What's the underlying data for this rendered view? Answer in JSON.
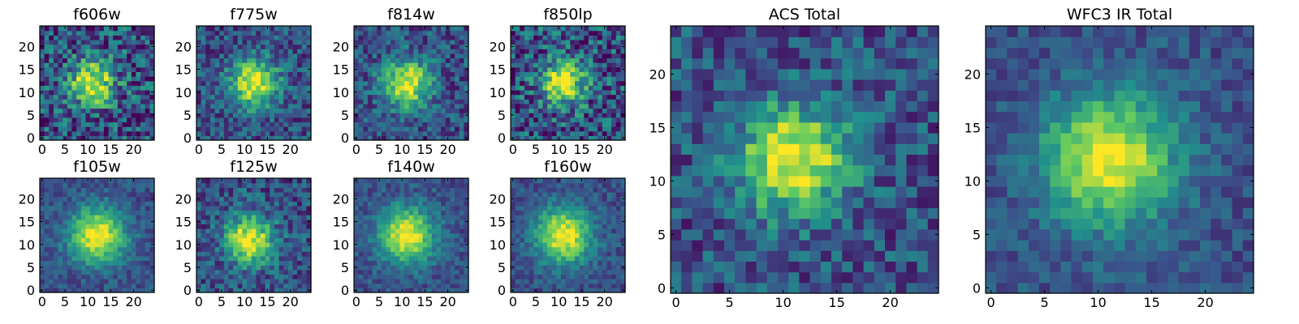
{
  "chart_data": [
    {
      "type": "heatmap",
      "title": "f606w",
      "xlim": [
        0,
        24
      ],
      "ylim": [
        0,
        24
      ],
      "xticks": [
        0,
        5,
        10,
        15,
        20
      ],
      "yticks": [
        0,
        5,
        10,
        15,
        20
      ],
      "colormap": "viridis",
      "center": [
        11,
        12
      ],
      "noise": "high"
    },
    {
      "type": "heatmap",
      "title": "f775w",
      "xlim": [
        0,
        24
      ],
      "ylim": [
        0,
        24
      ],
      "xticks": [
        0,
        5,
        10,
        15,
        20
      ],
      "yticks": [
        0,
        5,
        10,
        15,
        20
      ],
      "colormap": "viridis",
      "center": [
        12,
        12
      ],
      "noise": "medium"
    },
    {
      "type": "heatmap",
      "title": "f814w",
      "xlim": [
        0,
        24
      ],
      "ylim": [
        0,
        24
      ],
      "xticks": [
        0,
        5,
        10,
        15,
        20
      ],
      "yticks": [
        0,
        5,
        10,
        15,
        20
      ],
      "colormap": "viridis",
      "center": [
        11,
        12
      ],
      "noise": "medium"
    },
    {
      "type": "heatmap",
      "title": "f850lp",
      "xlim": [
        0,
        24
      ],
      "ylim": [
        0,
        24
      ],
      "xticks": [
        0,
        5,
        10,
        15,
        20
      ],
      "yticks": [
        0,
        5,
        10,
        15,
        20
      ],
      "colormap": "viridis",
      "center": [
        11,
        12
      ],
      "noise": "high"
    },
    {
      "type": "heatmap",
      "title": "f105w",
      "xlim": [
        0,
        24
      ],
      "ylim": [
        0,
        24
      ],
      "xticks": [
        0,
        5,
        10,
        15,
        20
      ],
      "yticks": [
        0,
        5,
        10,
        15,
        20
      ],
      "colormap": "viridis",
      "center": [
        12,
        12
      ],
      "noise": "low"
    },
    {
      "type": "heatmap",
      "title": "f125w",
      "xlim": [
        0,
        24
      ],
      "ylim": [
        0,
        24
      ],
      "xticks": [
        0,
        5,
        10,
        15,
        20
      ],
      "yticks": [
        0,
        5,
        10,
        15,
        20
      ],
      "colormap": "viridis",
      "center": [
        11,
        11
      ],
      "noise": "medium"
    },
    {
      "type": "heatmap",
      "title": "f140w",
      "xlim": [
        0,
        24
      ],
      "ylim": [
        0,
        24
      ],
      "xticks": [
        0,
        5,
        10,
        15,
        20
      ],
      "yticks": [
        0,
        5,
        10,
        15,
        20
      ],
      "colormap": "viridis",
      "center": [
        11,
        12
      ],
      "noise": "low"
    },
    {
      "type": "heatmap",
      "title": "f160w",
      "xlim": [
        0,
        24
      ],
      "ylim": [
        0,
        24
      ],
      "xticks": [
        0,
        5,
        10,
        15,
        20
      ],
      "yticks": [
        0,
        5,
        10,
        15,
        20
      ],
      "colormap": "viridis",
      "center": [
        11,
        12
      ],
      "noise": "low"
    },
    {
      "type": "heatmap",
      "title": "ACS Total",
      "xlim": [
        0,
        24
      ],
      "ylim": [
        0,
        24
      ],
      "xticks": [
        0,
        5,
        10,
        15,
        20
      ],
      "yticks": [
        0,
        5,
        10,
        15,
        20
      ],
      "colormap": "viridis",
      "center": [
        11,
        12
      ],
      "noise": "medium"
    },
    {
      "type": "heatmap",
      "title": "WFC3 IR Total",
      "xlim": [
        0,
        24
      ],
      "ylim": [
        0,
        24
      ],
      "xticks": [
        0,
        5,
        10,
        15,
        20
      ],
      "yticks": [
        0,
        5,
        10,
        15,
        20
      ],
      "colormap": "viridis",
      "center": [
        11,
        12
      ],
      "noise": "low"
    }
  ],
  "colors": {
    "viridis_stops": [
      "#440154",
      "#3b528b",
      "#21918c",
      "#5ec962",
      "#fde725"
    ],
    "axis_frame": "#000000",
    "background": "#ffffff"
  }
}
